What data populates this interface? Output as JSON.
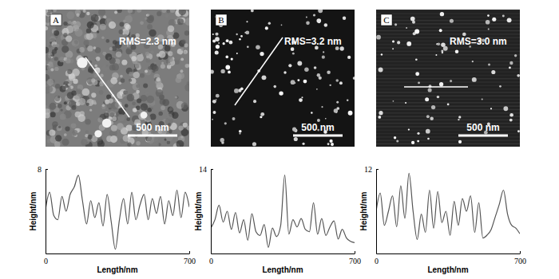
{
  "chart_data": [
    {
      "type": "line",
      "annotations": [
        "A",
        "RMS=2.3 nm",
        "500 nm"
      ],
      "x_label": "Length/nm",
      "y_label": "Height/nm",
      "x": [
        0,
        20,
        40,
        60,
        80,
        100,
        120,
        140,
        160,
        180,
        200,
        220,
        240,
        260,
        280,
        300,
        320,
        340,
        360,
        380,
        400,
        420,
        440,
        460,
        480,
        500,
        520,
        540,
        560,
        580,
        600,
        620,
        640,
        660,
        680,
        700
      ],
      "series": [
        {
          "color": "#555555",
          "values": [
            4.2,
            5.8,
            3.6,
            3.2,
            5.4,
            4.0,
            5.6,
            6.3,
            7.4,
            5.0,
            2.8,
            5.0,
            3.4,
            4.8,
            2.6,
            5.6,
            3.0,
            0.4,
            3.2,
            5.2,
            2.8,
            5.8,
            3.2,
            4.6,
            5.6,
            3.2,
            5.2,
            3.8,
            5.4,
            2.8,
            5.0,
            3.6,
            6.0,
            3.4,
            5.8,
            4.4
          ]
        }
      ],
      "xlim": [
        0,
        700
      ],
      "ylim": [
        0,
        8
      ],
      "xticks": [
        0,
        700
      ],
      "yticks": [
        8
      ]
    },
    {
      "type": "line",
      "annotations": [
        "B",
        "RMS=3.2 nm",
        "500 nm"
      ],
      "x_label": "Length/nm",
      "y_label": "Height/nm",
      "x": [
        0,
        20,
        40,
        60,
        80,
        100,
        120,
        140,
        160,
        180,
        200,
        220,
        240,
        260,
        280,
        300,
        320,
        340,
        360,
        380,
        400,
        420,
        440,
        460,
        480,
        500,
        520,
        540,
        560,
        580,
        600,
        620,
        640,
        660,
        680,
        700
      ],
      "series": [
        {
          "color": "#555555",
          "values": [
            4.2,
            5.6,
            8.0,
            5.2,
            7.0,
            4.0,
            6.8,
            3.4,
            5.6,
            2.2,
            6.6,
            3.6,
            3.0,
            4.8,
            1.0,
            4.2,
            2.8,
            4.6,
            13.0,
            3.2,
            5.6,
            4.4,
            5.8,
            4.0,
            3.6,
            8.4,
            3.2,
            5.8,
            3.0,
            4.4,
            5.4,
            2.4,
            4.0,
            2.6,
            2.0,
            1.8
          ]
        }
      ],
      "xlim": [
        0,
        700
      ],
      "ylim": [
        0,
        14
      ],
      "xticks": [
        0,
        700
      ],
      "yticks": [
        14
      ]
    },
    {
      "type": "line",
      "annotations": [
        "C",
        "RMS=3.0 nm",
        "500 nm"
      ],
      "x_label": "Length/nm",
      "y_label": "Height/nm",
      "x": [
        0,
        20,
        40,
        60,
        80,
        100,
        120,
        140,
        160,
        180,
        200,
        220,
        240,
        260,
        280,
        300,
        320,
        340,
        360,
        380,
        400,
        420,
        440,
        460,
        480,
        500,
        520,
        540,
        560,
        580,
        600,
        620,
        640,
        660,
        680,
        700
      ],
      "series": [
        {
          "color": "#555555",
          "values": [
            6.0,
            8.6,
            4.0,
            6.0,
            8.2,
            3.8,
            9.6,
            5.0,
            11.4,
            6.0,
            2.0,
            5.6,
            3.0,
            9.0,
            3.6,
            8.8,
            4.4,
            6.0,
            2.6,
            7.4,
            4.0,
            7.8,
            6.0,
            8.2,
            3.0,
            7.2,
            2.2,
            2.6,
            3.4,
            5.2,
            7.0,
            9.0,
            5.6,
            4.0,
            3.6,
            2.8
          ]
        }
      ],
      "xlim": [
        0,
        700
      ],
      "ylim": [
        0,
        12
      ],
      "xticks": [
        0,
        700
      ],
      "yticks": [
        12
      ]
    }
  ]
}
